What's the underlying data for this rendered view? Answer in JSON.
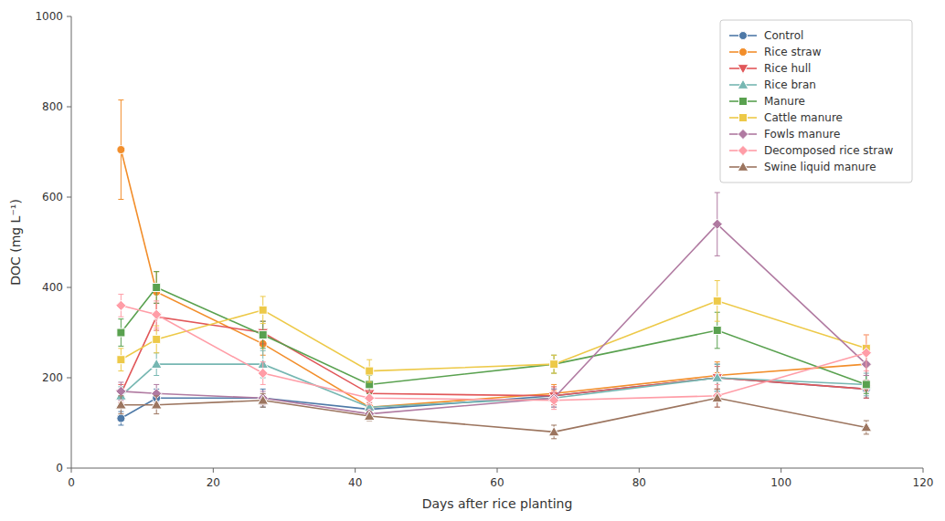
{
  "chart_data": {
    "type": "line",
    "x": [
      7,
      12,
      27,
      42,
      68,
      91,
      112
    ],
    "xlabel": "Days after rice planting",
    "ylabel": "DOC (mg L⁻¹)",
    "xlim": [
      0,
      120
    ],
    "ylim": [
      0,
      1000
    ],
    "xticks": [
      0,
      20,
      40,
      60,
      80,
      100,
      120
    ],
    "yticks": [
      0,
      200,
      400,
      600,
      800,
      1000
    ],
    "grid": false,
    "legend": "top-right",
    "series": [
      {
        "name": "Control",
        "marker": "circle",
        "values": [
          110,
          155,
          155,
          130,
          160,
          200,
          175
        ],
        "errors": [
          15,
          20,
          20,
          10,
          15,
          30,
          20
        ]
      },
      {
        "name": "Rice straw",
        "marker": "circle",
        "values": [
          705,
          390,
          275,
          135,
          165,
          205,
          230
        ],
        "errors": [
          110,
          45,
          25,
          15,
          20,
          30,
          25
        ]
      },
      {
        "name": "Rice hull",
        "marker": "triangle-down",
        "values": [
          165,
          335,
          300,
          165,
          160,
          200,
          175
        ],
        "errors": [
          20,
          30,
          25,
          20,
          20,
          25,
          20
        ]
      },
      {
        "name": "Rice bran",
        "marker": "triangle-up",
        "values": [
          160,
          230,
          230,
          135,
          155,
          200,
          185
        ],
        "errors": [
          20,
          25,
          30,
          15,
          20,
          30,
          25
        ]
      },
      {
        "name": "Manure",
        "marker": "square",
        "values": [
          300,
          400,
          295,
          185,
          230,
          305,
          185
        ],
        "errors": [
          30,
          35,
          30,
          20,
          20,
          40,
          20
        ]
      },
      {
        "name": "Cattle manure",
        "marker": "square",
        "values": [
          240,
          285,
          350,
          215,
          230,
          370,
          265
        ],
        "errors": [
          25,
          30,
          30,
          25,
          20,
          45,
          30
        ]
      },
      {
        "name": "Fowls manure",
        "marker": "diamond",
        "values": [
          170,
          165,
          155,
          120,
          155,
          540,
          230
        ],
        "errors": [
          20,
          20,
          15,
          10,
          20,
          70,
          25
        ]
      },
      {
        "name": "Decomposed rice straw",
        "marker": "diamond",
        "values": [
          360,
          340,
          210,
          155,
          150,
          160,
          255
        ],
        "errors": [
          25,
          30,
          25,
          15,
          20,
          25,
          40
        ]
      },
      {
        "name": "Swine liquid manure",
        "marker": "triangle-up",
        "values": [
          140,
          140,
          150,
          115,
          80,
          155,
          90
        ],
        "errors": [
          20,
          20,
          15,
          10,
          15,
          20,
          15
        ]
      }
    ]
  }
}
